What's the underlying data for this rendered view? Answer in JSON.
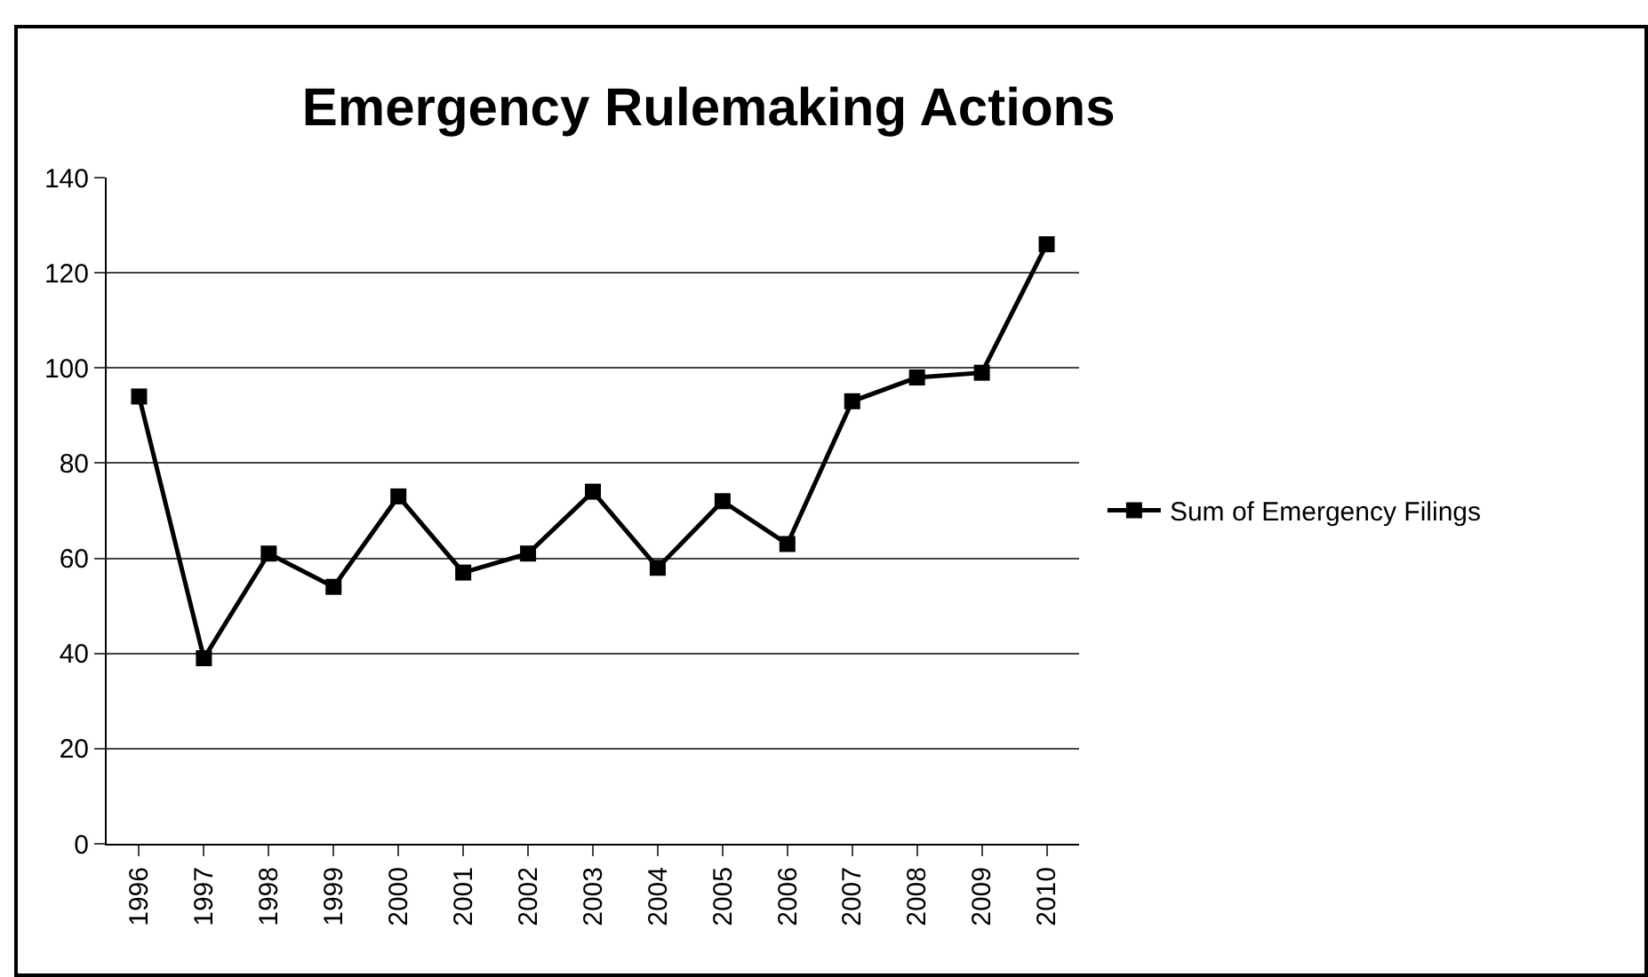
{
  "chart_data": {
    "type": "line",
    "title": "Emergency Rulemaking Actions",
    "categories": [
      "1996",
      "1997",
      "1998",
      "1999",
      "2000",
      "2001",
      "2002",
      "2003",
      "2004",
      "2005",
      "2006",
      "2007",
      "2008",
      "2009",
      "2010"
    ],
    "series": [
      {
        "name": "Sum of Emergency Filings",
        "color": "#000000",
        "values": [
          94,
          39,
          61,
          54,
          73,
          57,
          61,
          74,
          58,
          72,
          63,
          93,
          98,
          99,
          126
        ]
      }
    ],
    "ylim": [
      0,
      140
    ],
    "yticks": [
      0,
      20,
      40,
      60,
      80,
      100,
      120,
      140
    ],
    "grid": "y",
    "legend": "right",
    "marker": "square",
    "line_style": "solid"
  }
}
